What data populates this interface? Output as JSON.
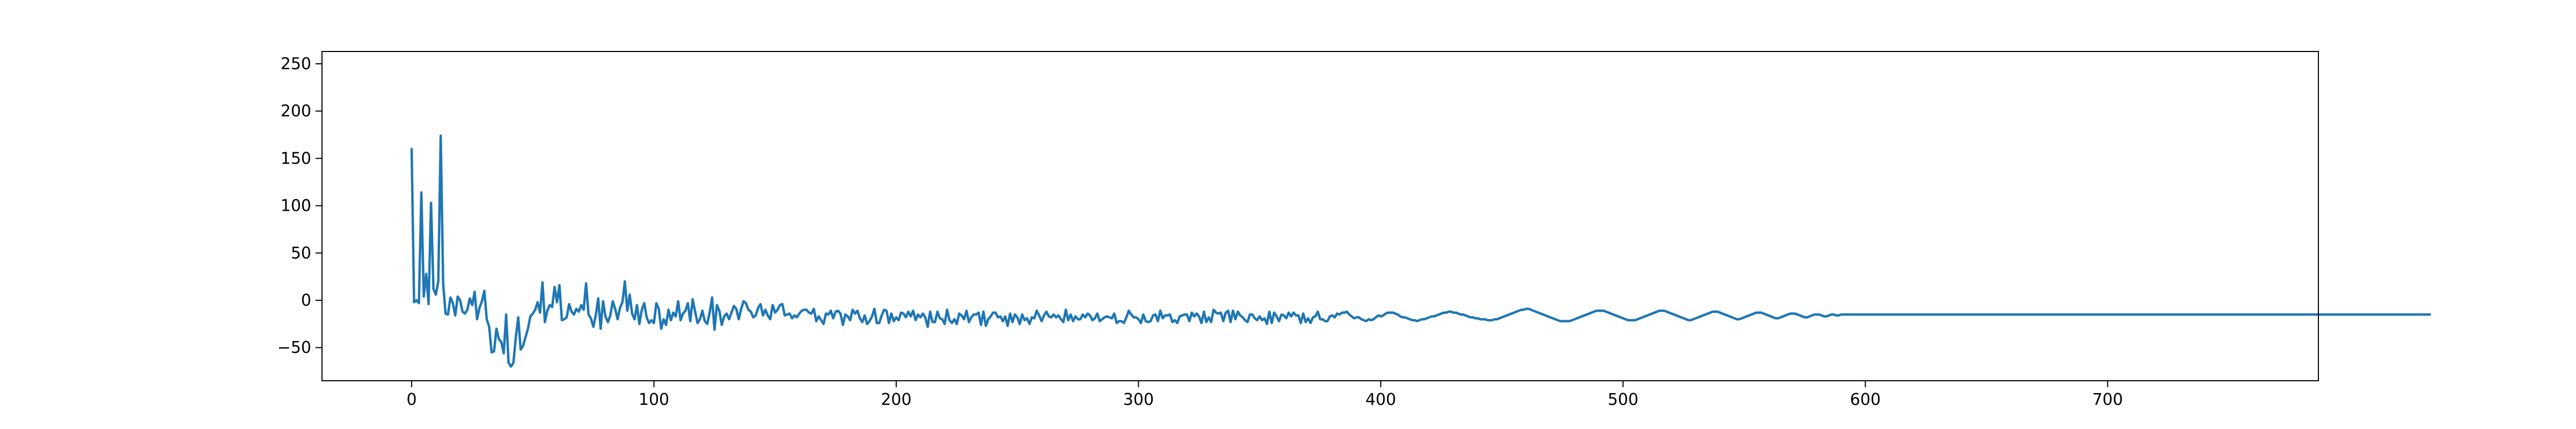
{
  "chart_data": {
    "type": "line",
    "title": "",
    "xlabel": "",
    "ylabel": "",
    "xlim": [
      -37,
      787
    ],
    "ylim": [
      -85,
      263
    ],
    "xticks": [
      0,
      100,
      200,
      300,
      400,
      500,
      600,
      700
    ],
    "yticks": [
      -50,
      0,
      50,
      100,
      150,
      200,
      250
    ],
    "grid": false,
    "legend": null,
    "line_color": "#1f77b4",
    "series": [
      {
        "x_start": 0,
        "x_step": 1,
        "values": [
          160,
          -2,
          0,
          -3,
          114,
          4,
          28,
          -4,
          103,
          12,
          6,
          20,
          174,
          18,
          -14,
          -15,
          3,
          -3,
          -16,
          4,
          0,
          -12,
          -14,
          -10,
          2,
          -5,
          9,
          -20,
          -8,
          -1,
          10,
          -20,
          -28,
          -55,
          -54,
          -30,
          -41,
          -44,
          -56,
          -15,
          -66,
          -70,
          -66,
          -39,
          -18,
          -52,
          -48,
          -39,
          -30,
          -17,
          -14,
          -10,
          -2,
          -13,
          19,
          -23,
          -11,
          -5,
          -7,
          14,
          -2,
          16,
          -21,
          -20,
          -18,
          -4,
          -12,
          -15,
          -9,
          -12,
          -5,
          -10,
          18,
          -15,
          -19,
          -28,
          -16,
          2,
          -30,
          -1,
          -17,
          -23,
          -16,
          -1,
          -9,
          -20,
          -8,
          -2,
          20,
          -11,
          6,
          -14,
          -20,
          -5,
          -25,
          -10,
          -3,
          -18,
          -24,
          -21,
          -24,
          -3,
          -9,
          -30,
          -20,
          -26,
          -10,
          -21,
          -13,
          -17,
          -1,
          -21,
          -14,
          -11,
          -3,
          -22,
          1,
          -12,
          -24,
          -20,
          -11,
          -22,
          -25,
          -13,
          3,
          -31,
          -5,
          -11,
          -26,
          -17,
          -14,
          -20,
          -13,
          -6,
          -9,
          -20,
          -9,
          -1,
          -3,
          -10,
          -12,
          -18,
          -16,
          -8,
          -4,
          -16,
          -10,
          -16,
          -20,
          -5,
          -13,
          -10,
          -5,
          -4,
          -16,
          -15,
          -14,
          -19,
          -16,
          -18,
          -14,
          -11,
          -10,
          -10,
          -13,
          -14,
          -9,
          -22,
          -17,
          -21,
          -25,
          -14,
          -15,
          -11,
          -19,
          -12,
          -11,
          -14,
          -26,
          -15,
          -17,
          -21,
          -10,
          -14,
          -11,
          -19,
          -23,
          -16,
          -25,
          -22,
          -17,
          -9,
          -24,
          -24,
          -16,
          -10,
          -11,
          -24,
          -14,
          -22,
          -18,
          -21,
          -13,
          -14,
          -18,
          -12,
          -17,
          -11,
          -21,
          -15,
          -18,
          -14,
          -18,
          -28,
          -12,
          -23,
          -23,
          -12,
          -19,
          -20,
          -25,
          -10,
          -21,
          -24,
          -20,
          -25,
          -14,
          -16,
          -20,
          -11,
          -23,
          -18,
          -15,
          -15,
          -13,
          -26,
          -12,
          -27,
          -20,
          -17,
          -13,
          -13,
          -18,
          -17,
          -22,
          -17,
          -27,
          -14,
          -23,
          -15,
          -18,
          -25,
          -15,
          -21,
          -19,
          -25,
          -18,
          -19,
          -11,
          -16,
          -22,
          -16,
          -12,
          -17,
          -18,
          -15,
          -18,
          -16,
          -20,
          -23,
          -10,
          -21,
          -15,
          -22,
          -17,
          -20,
          -20,
          -15,
          -18,
          -14,
          -16,
          -21,
          -19,
          -14,
          -22,
          -20,
          -18,
          -17,
          -18,
          -19,
          -14,
          -24,
          -22,
          -22,
          -24,
          -18,
          -11,
          -15,
          -18,
          -18,
          -20,
          -24,
          -15,
          -22,
          -23,
          -22,
          -16,
          -15,
          -22,
          -11,
          -19,
          -16,
          -16,
          -15,
          -23,
          -21,
          -24,
          -17,
          -16,
          -15,
          -15,
          -22,
          -13,
          -17,
          -14,
          -17,
          -24,
          -12,
          -23,
          -18,
          -23,
          -10,
          -13,
          -14,
          -13,
          -22,
          -13,
          -11,
          -23,
          -11,
          -20,
          -12,
          -16,
          -18,
          -21,
          -23,
          -15,
          -15,
          -19,
          -21,
          -17,
          -21,
          -19,
          -25,
          -12,
          -24,
          -13,
          -17,
          -22,
          -15,
          -16,
          -19,
          -13,
          -17,
          -13,
          -16,
          -16,
          -24,
          -14,
          -23,
          -19,
          -24,
          -18,
          -17,
          -12,
          -20,
          -20,
          -22,
          -22,
          -17,
          -16,
          -18,
          -14,
          -15,
          -13,
          -13,
          -12,
          -15,
          -17,
          -19,
          -18,
          -18,
          -20,
          -21,
          -22,
          -20,
          -21,
          -20,
          -18,
          -16,
          -17,
          -16,
          -14,
          -13,
          -13,
          -13,
          -14,
          -15,
          -17,
          -18,
          -18,
          -19,
          -20,
          -21,
          -21,
          -22,
          -21,
          -20,
          -20,
          -19,
          -18,
          -17,
          -17,
          -16,
          -15,
          -14,
          -13,
          -13,
          -12,
          -12,
          -13,
          -13,
          -14,
          -15,
          -15,
          -16,
          -17,
          -18,
          -18,
          -19,
          -19,
          -20,
          -20,
          -20,
          -21,
          -21,
          -21,
          -20,
          -20,
          -19,
          -18,
          -17,
          -16,
          -15,
          -14,
          -13,
          -12,
          -11,
          -10,
          -10,
          -9,
          -9,
          -10,
          -11,
          -12,
          -13,
          -14,
          -15,
          -16,
          -17,
          -18,
          -19,
          -20,
          -21,
          -22,
          -22,
          -22,
          -22,
          -22,
          -21,
          -20,
          -19,
          -18,
          -17,
          -16,
          -15,
          -14,
          -13,
          -12,
          -11,
          -11,
          -11,
          -11,
          -12,
          -13,
          -14,
          -15,
          -16,
          -17,
          -18,
          -19,
          -20,
          -21,
          -21,
          -21,
          -21,
          -20,
          -19,
          -18,
          -17,
          -16,
          -15,
          -14,
          -13,
          -12,
          -11,
          -11,
          -11,
          -12,
          -13,
          -14,
          -15,
          -16,
          -17,
          -18,
          -19,
          -20,
          -21,
          -21,
          -20,
          -19,
          -18,
          -17,
          -16,
          -15,
          -14,
          -13,
          -12,
          -12,
          -12,
          -13,
          -14,
          -15,
          -16,
          -17,
          -18,
          -19,
          -20,
          -20,
          -19,
          -18,
          -17,
          -16,
          -15,
          -14,
          -13,
          -13,
          -13,
          -14,
          -15,
          -16,
          -17,
          -18,
          -19,
          -19,
          -18,
          -17,
          -16,
          -15,
          -14,
          -14,
          -14,
          -15,
          -16,
          -17,
          -18,
          -18,
          -17,
          -16,
          -15,
          -15,
          -15,
          -16,
          -17,
          -17,
          -16,
          -15,
          -15,
          -16,
          -16,
          -15,
          -15,
          -15,
          -15,
          -15,
          -15,
          -15,
          -15,
          -15,
          -15,
          -15,
          -15,
          -15,
          -15,
          -15,
          -15,
          -15,
          -15,
          -15,
          -15,
          -15,
          -15,
          -15,
          -15,
          -15,
          -15,
          -15,
          -15,
          -15,
          -15,
          -15,
          -15,
          -15,
          -15,
          -15,
          -15,
          -15,
          -15,
          -15,
          -15,
          -15,
          -15,
          -15,
          -15,
          -15,
          -15,
          -15,
          -15,
          -15,
          -15,
          -15,
          -15,
          -15,
          -15,
          -15,
          -15,
          -15,
          -15,
          -15,
          -15,
          -15,
          -15,
          -15,
          -15,
          -15,
          -15,
          -15,
          -15,
          -15,
          -15,
          -15,
          -15,
          -15,
          -15,
          -15,
          -15,
          -15,
          -15,
          -15,
          -15,
          -15,
          -15,
          -15,
          -15,
          -15,
          -15,
          -15,
          -15,
          -15,
          -15,
          -15,
          -15,
          -15,
          -15,
          -15,
          -15,
          -15,
          -15,
          -15,
          -15,
          -15,
          -15,
          -15,
          -15,
          -15,
          -15,
          -15,
          -15,
          -15,
          -15,
          -15,
          -15,
          -15,
          -15,
          -15,
          -15,
          -15,
          -15,
          -15,
          -15,
          -15,
          -15,
          -15,
          -15,
          -15,
          -15,
          -15,
          -15,
          -15,
          -15,
          -15,
          -15,
          -15,
          -15,
          -15,
          -15,
          -15,
          -15,
          -15,
          -15,
          -15,
          -15,
          -15,
          -15,
          -15,
          -15,
          -15,
          -15,
          -15,
          -15,
          -15,
          -15,
          -15,
          -15,
          -15,
          -15,
          -15,
          -15,
          -15,
          -15,
          -15,
          -15,
          -15,
          -15,
          -15,
          -15,
          -15,
          -15,
          -15,
          -15,
          -15,
          -15,
          -15,
          -15,
          -15,
          -15,
          -15,
          -15,
          -15,
          -15,
          -15,
          -15,
          -15,
          -15,
          -15,
          -15,
          -15,
          -15,
          -15,
          -15,
          -15,
          -15,
          -15,
          -15,
          -15,
          -15,
          -15,
          -15,
          -15,
          -15,
          -15,
          -15,
          -15,
          -15,
          -15,
          -15,
          -15,
          -15,
          -15,
          -15,
          -15,
          -15,
          -15,
          -15,
          -15,
          -15,
          -15,
          -15,
          -15,
          -15,
          -15,
          -15,
          -15,
          -15,
          -15,
          -15,
          -15,
          -15,
          -15,
          -15,
          -15,
          -15,
          -15,
          -15,
          -15,
          -15,
          -15,
          -15,
          -15,
          -15,
          -15,
          -15,
          -15,
          -15
        ]
      }
    ]
  }
}
